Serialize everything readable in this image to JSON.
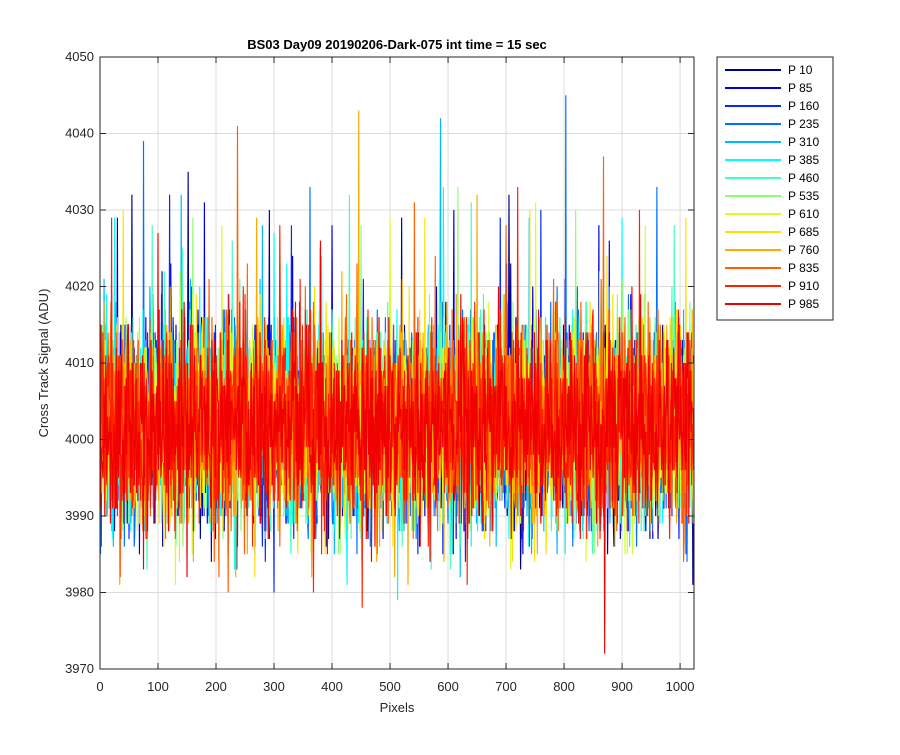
{
  "chart_data": {
    "type": "line",
    "title": "BS03 Day09 20190206-Dark-075 int time = 15 sec",
    "xlabel": "Pixels",
    "ylabel": "Cross Track Signal (ADU)",
    "xlim": [
      0,
      1024
    ],
    "ylim": [
      3970,
      4050
    ],
    "xticks": [
      0,
      100,
      200,
      300,
      400,
      500,
      600,
      700,
      800,
      900,
      1000
    ],
    "yticks": [
      3970,
      3980,
      3990,
      4000,
      4010,
      4020,
      4030,
      4040,
      4050
    ],
    "grid": true,
    "legend_position": "outside-right",
    "noise": {
      "mean": 4002,
      "sd": 6.5,
      "num_points": 1024
    },
    "series": [
      {
        "name": "P 10",
        "color": "#00008f",
        "spikes": [
          [
            55,
            4032
          ],
          [
            152,
            4035
          ],
          [
            292,
            4030
          ],
          [
            520,
            4029
          ],
          [
            705,
            4032
          ]
        ]
      },
      {
        "name": "P 85",
        "color": "#0000d6",
        "spikes": [
          [
            30,
            4029
          ],
          [
            180,
            4031
          ],
          [
            400,
            4028
          ],
          [
            610,
            4030
          ],
          [
            860,
            4028
          ]
        ]
      },
      {
        "name": "P 160",
        "color": "#0028ff",
        "spikes": [
          [
            120,
            4032
          ],
          [
            330,
            4028
          ],
          [
            690,
            4029
          ],
          [
            760,
            4030
          ]
        ]
      },
      {
        "name": "P 235",
        "color": "#0070ff",
        "spikes": [
          [
            75,
            4039
          ],
          [
            362,
            4033
          ],
          [
            803,
            4045
          ],
          [
            960,
            4033
          ]
        ]
      },
      {
        "name": "P 310",
        "color": "#00b8ff",
        "spikes": [
          [
            140,
            4032
          ],
          [
            280,
            4028
          ],
          [
            587,
            4042
          ],
          [
            740,
            4029
          ]
        ]
      },
      {
        "name": "P 385",
        "color": "#00fcff",
        "spikes": [
          [
            25,
            4029
          ],
          [
            300,
            4027
          ],
          [
            592,
            4033
          ],
          [
            900,
            4029
          ]
        ]
      },
      {
        "name": "P 460",
        "color": "#44ffbb",
        "spikes": [
          [
            90,
            4028
          ],
          [
            430,
            4032
          ],
          [
            640,
            4031
          ],
          [
            990,
            4028
          ]
        ]
      },
      {
        "name": "P 535",
        "color": "#8cff73",
        "spikes": [
          [
            160,
            4029
          ],
          [
            450,
            4028
          ],
          [
            617,
            4033
          ],
          [
            820,
            4030
          ]
        ]
      },
      {
        "name": "P 610",
        "color": "#d4ff2b",
        "spikes": [
          [
            210,
            4028
          ],
          [
            500,
            4029
          ],
          [
            751,
            4031
          ],
          [
            940,
            4028
          ]
        ]
      },
      {
        "name": "P 685",
        "color": "#ffe000",
        "spikes": [
          [
            40,
            4030
          ],
          [
            560,
            4029
          ],
          [
            741,
            4030
          ],
          [
            1010,
            4029
          ]
        ]
      },
      {
        "name": "P 760",
        "color": "#ffa800",
        "spikes": [
          [
            270,
            4029
          ],
          [
            446,
            4043
          ],
          [
            650,
            4032
          ]
        ]
      },
      {
        "name": "P 835",
        "color": "#ff6000",
        "spikes": [
          [
            237,
            4041
          ],
          [
            542,
            4031
          ],
          [
            700,
            4028
          ],
          [
            868,
            4037
          ]
        ]
      },
      {
        "name": "P 910",
        "color": "#ff2000",
        "spikes": [
          [
            20,
            4029
          ],
          [
            310,
            4028
          ],
          [
            720,
            4033
          ],
          [
            930,
            4030
          ]
        ]
      },
      {
        "name": "P 985",
        "color": "#f00000",
        "spikes": [
          [
            100,
            4027
          ],
          [
            380,
            4026
          ],
          [
            870,
            3972
          ]
        ]
      }
    ]
  }
}
